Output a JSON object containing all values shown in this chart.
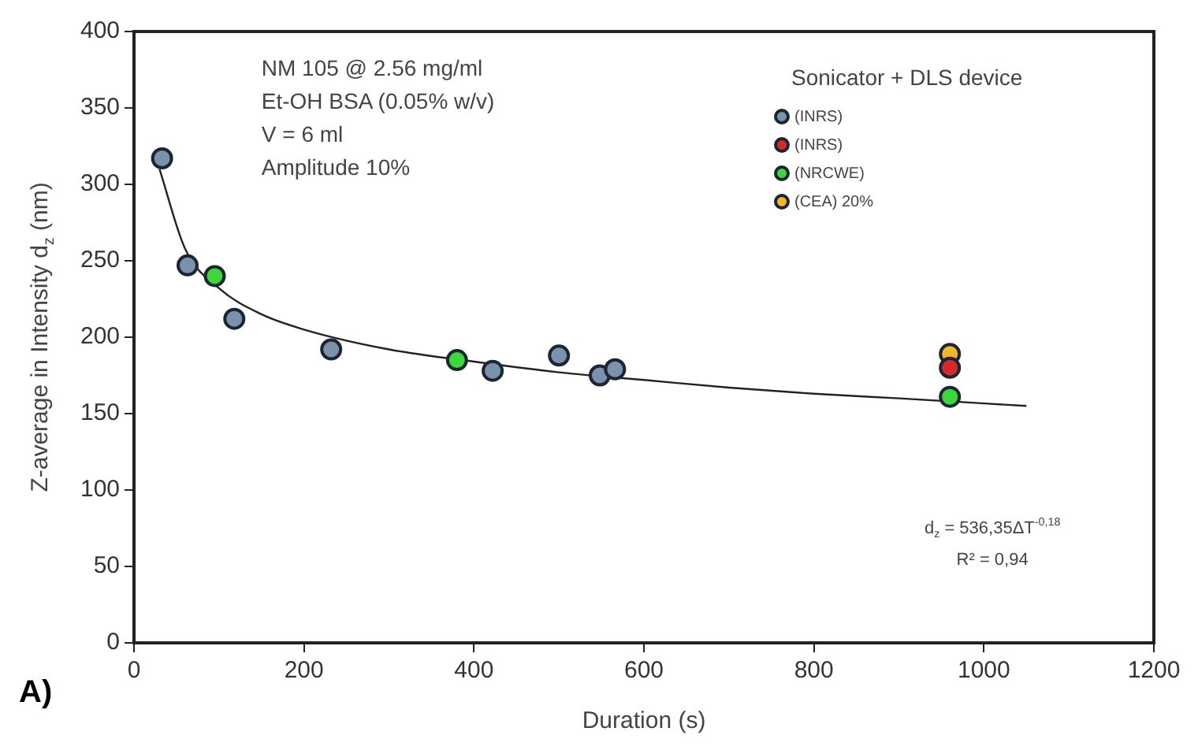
{
  "chart_data": {
    "type": "scatter",
    "xlabel": "Duration (s)",
    "ylabel": "Z-average in Intensity d$_{z}$ (nm)",
    "legend_title": "Sonicator + DLS device",
    "xlim": [
      0,
      1200
    ],
    "xticks": [
      0,
      200,
      400,
      600,
      800,
      1000,
      1200
    ],
    "ylim": [
      0,
      400
    ],
    "yticks": [
      0,
      50,
      100,
      150,
      200,
      250,
      300,
      350,
      400
    ],
    "grid": false,
    "legend": "top right",
    "marker": "circle",
    "series": [
      {
        "name": "(INRS)",
        "color": "#7b92ad",
        "x": [
          33,
          63,
          118,
          232,
          422,
          500,
          548,
          566
        ],
        "values": [
          317,
          247,
          212,
          192,
          178,
          188,
          175,
          179
        ]
      },
      {
        "name": "(INRS)",
        "color": "#d42a2a",
        "x": [
          960
        ],
        "values": [
          180
        ]
      },
      {
        "name": "(NRCWE)",
        "color": "#3ed63a",
        "x": [
          95,
          380,
          960
        ],
        "values": [
          240,
          185,
          161
        ]
      },
      {
        "name": "(CEA) 20%",
        "color": "#f2b62a",
        "x": [
          960
        ],
        "values": [
          189
        ]
      },
      {
        "type": "line",
        "marker": "none",
        "color": "#222222",
        "x": [
          30,
          60,
          100,
          150,
          200,
          300,
          400,
          500,
          600,
          700,
          800,
          900,
          1050
        ],
        "values": [
          310,
          258,
          232,
          215,
          205,
          192,
          184,
          177,
          172,
          167,
          163,
          160,
          155
        ]
      }
    ],
    "annotations": [
      {
        "text": "NM 105 @ 2.56 mg/ml"
      },
      {
        "text": "Et-OH BSA (0.05% w/v)"
      },
      {
        "text": "V = 6 ml"
      },
      {
        "text": "Amplitude 10%"
      },
      {
        "text": "d$_{z}$ = 536,35ΔT$^{-0,18}$"
      },
      {
        "text": "R² = 0,94"
      },
      {
        "text": "A)"
      }
    ]
  }
}
